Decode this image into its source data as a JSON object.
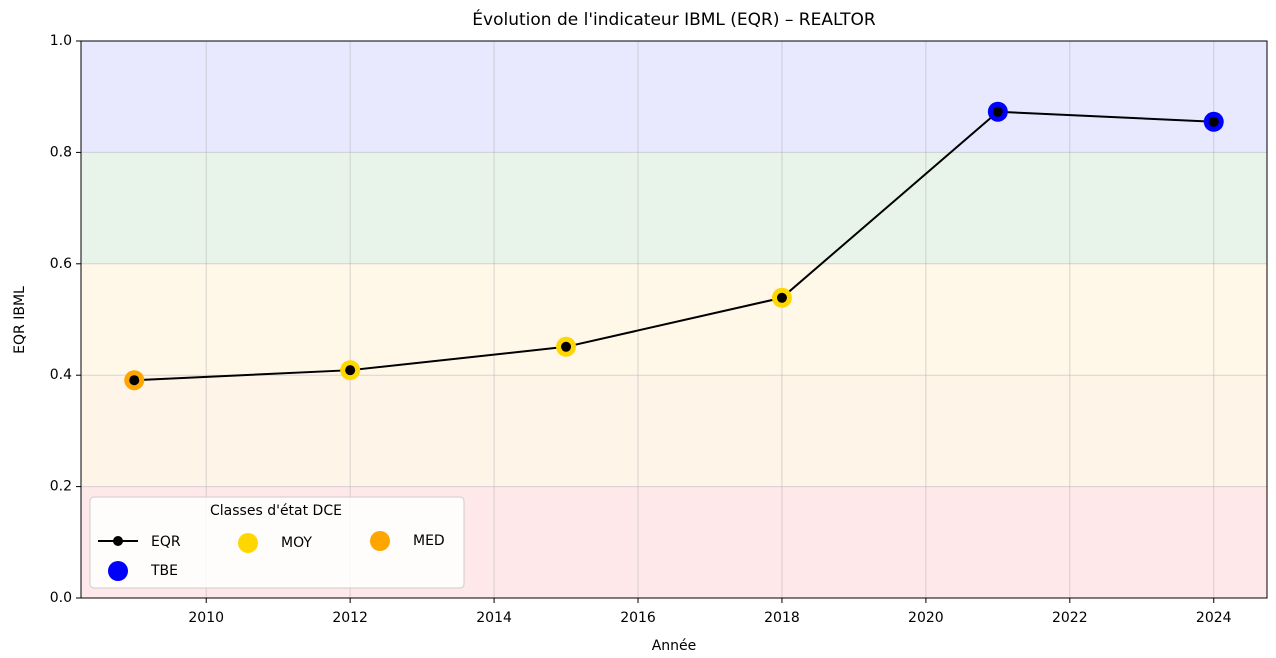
{
  "chart_data": {
    "type": "line",
    "title": "Évolution de l'indicateur IBML (EQR) – REALTOR",
    "x_label": "Année",
    "y_label": "EQR IBML",
    "x": [
      2009,
      2012,
      2015,
      2018,
      2021,
      2024
    ],
    "series": [
      {
        "name": "EQR",
        "color": "#000000",
        "values": [
          0.391,
          0.409,
          0.451,
          0.539,
          0.873,
          0.855
        ]
      }
    ],
    "classes": [
      {
        "name": "TBE",
        "color": "#0000ff",
        "range": [
          0.8,
          1.0
        ]
      },
      {
        "name": "MOY",
        "color": "#ffd700",
        "range": [
          0.4,
          0.6
        ]
      },
      {
        "name": "MED",
        "color": "#ffa500",
        "range": [
          0.2,
          0.4
        ]
      }
    ],
    "bands": [
      {
        "range": [
          0.0,
          0.2
        ],
        "color": "#ffe8ea"
      },
      {
        "range": [
          0.2,
          0.4
        ],
        "color": "#fff4e8"
      },
      {
        "range": [
          0.4,
          0.6
        ],
        "color": "#fff8e8"
      },
      {
        "range": [
          0.6,
          0.8
        ],
        "color": "#e8f4ea"
      },
      {
        "range": [
          0.8,
          1.0
        ],
        "color": "#e8e8ff"
      }
    ],
    "legend_title": "Classes d'état DCE",
    "legend_position": "lower left",
    "xlim": [
      2008.26,
      2024.74
    ],
    "ylim": [
      0,
      1
    ],
    "xticks": [
      2010,
      2012,
      2014,
      2016,
      2018,
      2020,
      2022,
      2024
    ],
    "yticks": [
      {
        "value": 0,
        "label": "0.0"
      },
      {
        "value": 0.2,
        "label": "0.2"
      },
      {
        "value": 0.4,
        "label": "0.4"
      },
      {
        "value": 0.6,
        "label": "0.6"
      },
      {
        "value": 0.8,
        "label": "0.8"
      },
      {
        "value": 1,
        "label": "1.0"
      }
    ],
    "grid": true
  }
}
